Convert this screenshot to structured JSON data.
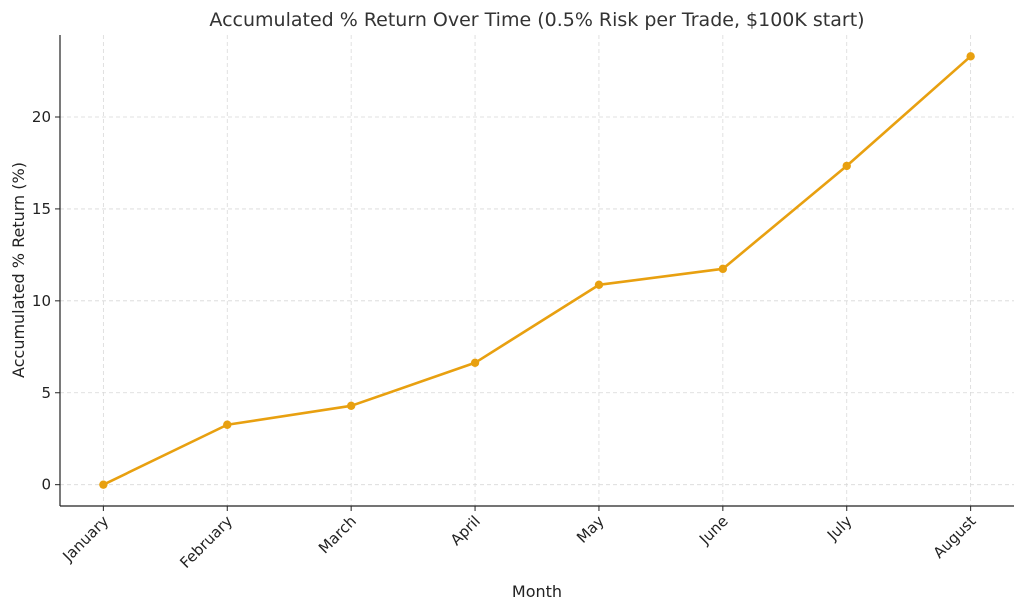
{
  "chart_data": {
    "type": "line",
    "title": "Accumulated % Return Over Time (0.5% Risk per Trade, $100K start)",
    "xlabel": "Month",
    "ylabel": "Accumulated % Return (%)",
    "categories": [
      "January",
      "February",
      "March",
      "April",
      "May",
      "June",
      "July",
      "August"
    ],
    "series": [
      {
        "values": [
          0,
          3.26,
          4.29,
          6.63,
          10.87,
          11.74,
          17.34,
          23.3
        ],
        "color": "#E8A010",
        "marker": "circle"
      }
    ],
    "yticks": [
      0,
      5,
      10,
      15,
      20
    ],
    "ylim": [
      -1.16,
      24.46
    ],
    "grid": true,
    "grid_style": "dashed"
  }
}
